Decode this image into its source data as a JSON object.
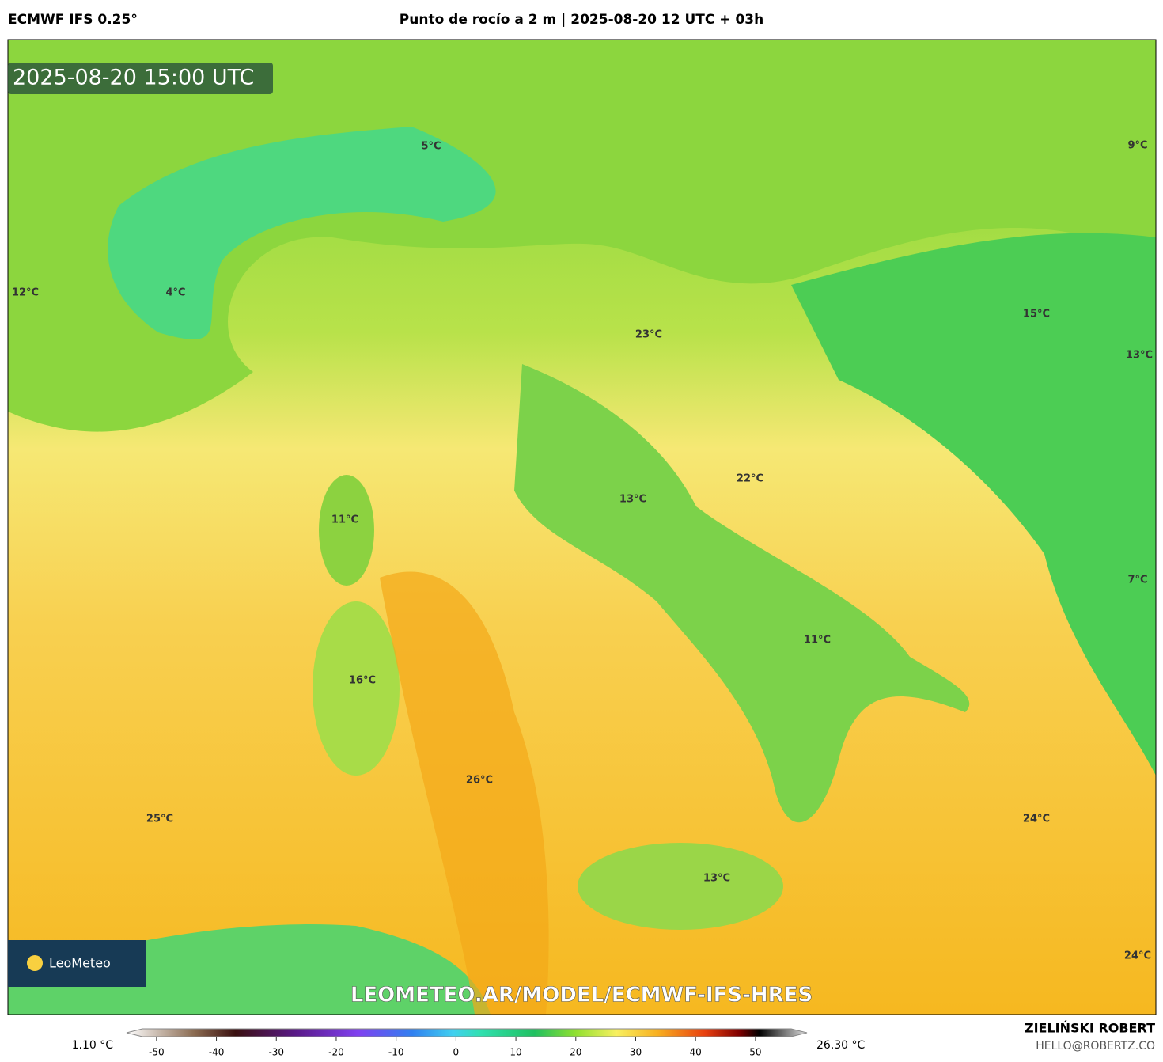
{
  "header": {
    "model": "ECMWF IFS 0.25°",
    "title": "Punto de rocío a 2 m | 2025-08-20 12 UTC + 03h"
  },
  "map": {
    "timestamp": "2025-08-20 15:00 UTC",
    "labels": [
      "5°C",
      "9°C",
      "12°C",
      "4°C",
      "23°C",
      "15°C",
      "13°C",
      "22°C",
      "13°C",
      "11°C",
      "7°C",
      "11°C",
      "16°C",
      "26°C",
      "25°C",
      "24°C",
      "13°C",
      "24°C"
    ],
    "watermark": "LEOMETEO.AR/MODEL/ECMWF-IFS-HRES",
    "logo": "LeoMeteo"
  },
  "colorbar": {
    "min_label": "1.10 °C",
    "max_label": "26.30 °C",
    "lim": [
      -55,
      58.6
    ],
    "ticks": [
      -50,
      -40,
      -30,
      -20,
      -10,
      0,
      10,
      20,
      30,
      40,
      50
    ]
  },
  "footer": {
    "author": "ZIELIŃSKI ROBERT",
    "email": "HELLO@ROBERTZ.CO"
  }
}
